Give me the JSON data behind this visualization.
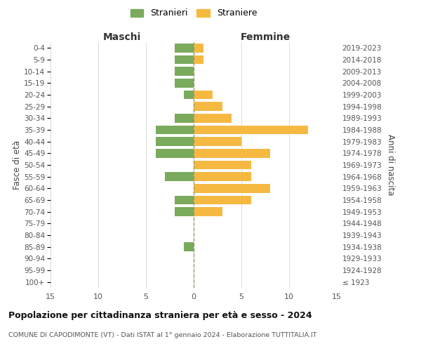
{
  "age_groups": [
    "100+",
    "95-99",
    "90-94",
    "85-89",
    "80-84",
    "75-79",
    "70-74",
    "65-69",
    "60-64",
    "55-59",
    "50-54",
    "45-49",
    "40-44",
    "35-39",
    "30-34",
    "25-29",
    "20-24",
    "15-19",
    "10-14",
    "5-9",
    "0-4"
  ],
  "birth_years": [
    "≤ 1923",
    "1924-1928",
    "1929-1933",
    "1934-1938",
    "1939-1943",
    "1944-1948",
    "1949-1953",
    "1954-1958",
    "1959-1963",
    "1964-1968",
    "1969-1973",
    "1974-1978",
    "1979-1983",
    "1984-1988",
    "1989-1993",
    "1994-1998",
    "1999-2003",
    "2004-2008",
    "2009-2013",
    "2014-2018",
    "2019-2023"
  ],
  "males": [
    0,
    0,
    0,
    1,
    0,
    0,
    2,
    2,
    0,
    3,
    0,
    4,
    4,
    4,
    2,
    0,
    1,
    2,
    2,
    2,
    2
  ],
  "females": [
    0,
    0,
    0,
    0,
    0,
    0,
    3,
    6,
    8,
    6,
    6,
    8,
    5,
    12,
    4,
    3,
    2,
    0,
    0,
    1,
    1
  ],
  "male_color": "#7aaa5c",
  "female_color": "#f5b942",
  "center_line_color": "#999966",
  "grid_color": "#cccccc",
  "background_color": "#ffffff",
  "title": "Popolazione per cittadinanza straniera per età e sesso - 2024",
  "subtitle": "COMUNE DI CAPODIMONTE (VT) - Dati ISTAT al 1° gennaio 2024 - Elaborazione TUTTITALIA.IT",
  "xlabel_left": "Maschi",
  "xlabel_right": "Femmine",
  "ylabel_left": "Fasce di età",
  "ylabel_right": "Anni di nascita",
  "legend_male": "Stranieri",
  "legend_female": "Straniere",
  "xlim": 15,
  "bar_height": 0.75
}
